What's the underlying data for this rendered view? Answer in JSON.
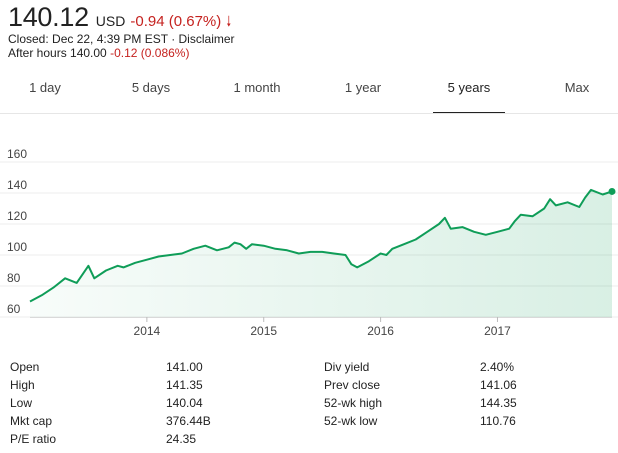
{
  "quote": {
    "price": "140.12",
    "currency": "USD",
    "change": "-0.94 (0.67%)",
    "closed_text": "Closed: Dec 22, 4:39 PM EST · Disclaimer",
    "after_hours_label": "After hours 140.00",
    "after_hours_change": "-0.12 (0.086%)",
    "down_color": "#c5221f"
  },
  "tabs": [
    {
      "label": "1 day",
      "active": false
    },
    {
      "label": "5 days",
      "active": false
    },
    {
      "label": "1 month",
      "active": false
    },
    {
      "label": "1 year",
      "active": false
    },
    {
      "label": "5 years",
      "active": true
    },
    {
      "label": "Max",
      "active": false
    }
  ],
  "chart_data": {
    "type": "area",
    "title": "",
    "xlabel": "",
    "ylabel": "",
    "y_ticks": [
      60,
      80,
      100,
      120,
      140,
      160
    ],
    "ylim": [
      60,
      160
    ],
    "xlim": [
      2013.0,
      2017.98
    ],
    "x_tick_values": [
      2014,
      2015,
      2016,
      2017
    ],
    "x_tick_labels": [
      "2014",
      "2015",
      "2016",
      "2017"
    ],
    "grid": true,
    "line_color": "#0f9d58",
    "series": [
      {
        "name": "",
        "x": [
          2013.0,
          2013.1,
          2013.2,
          2013.3,
          2013.4,
          2013.5,
          2013.55,
          2013.65,
          2013.75,
          2013.8,
          2013.9,
          2014.0,
          2014.1,
          2014.2,
          2014.3,
          2014.4,
          2014.5,
          2014.6,
          2014.7,
          2014.75,
          2014.8,
          2014.85,
          2014.9,
          2015.0,
          2015.1,
          2015.2,
          2015.3,
          2015.4,
          2015.5,
          2015.6,
          2015.7,
          2015.75,
          2015.8,
          2015.9,
          2016.0,
          2016.05,
          2016.1,
          2016.2,
          2016.3,
          2016.4,
          2016.5,
          2016.55,
          2016.6,
          2016.7,
          2016.8,
          2016.9,
          2017.0,
          2017.1,
          2017.15,
          2017.2,
          2017.3,
          2017.4,
          2017.45,
          2017.5,
          2017.6,
          2017.7,
          2017.75,
          2017.8,
          2017.9,
          2017.98
        ],
        "values": [
          70,
          74,
          79,
          85,
          82,
          93,
          85,
          90,
          93,
          92,
          95,
          97,
          99,
          100,
          101,
          104,
          106,
          103,
          105,
          108,
          107,
          104,
          107,
          106,
          104,
          103,
          101,
          102,
          102,
          101,
          100,
          94,
          92,
          96,
          101,
          100,
          104,
          107,
          110,
          115,
          120,
          124,
          117,
          118,
          115,
          113,
          115,
          117,
          122,
          126,
          125,
          130,
          136,
          132,
          134,
          131,
          137,
          142,
          139,
          141
        ]
      }
    ],
    "current_value": 141
  },
  "stats": [
    {
      "key": "Open",
      "value": "141.00"
    },
    {
      "key": "High",
      "value": "141.35"
    },
    {
      "key": "Low",
      "value": "140.04"
    },
    {
      "key": "Mkt cap",
      "value": "376.44B"
    },
    {
      "key": "P/E ratio",
      "value": "24.35"
    },
    {
      "key": "Div yield",
      "value": "2.40%"
    },
    {
      "key": "Prev close",
      "value": "141.06"
    },
    {
      "key": "52-wk high",
      "value": "144.35"
    },
    {
      "key": "52-wk low",
      "value": "110.76"
    }
  ]
}
